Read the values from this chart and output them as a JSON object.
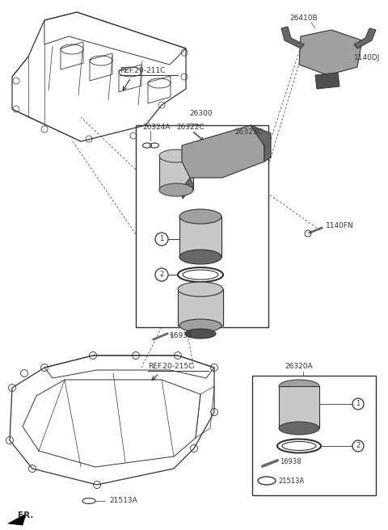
{
  "bg_color": "#ffffff",
  "line_color": "#333333",
  "labels": {
    "ref_20_211c": "REF.20-211C",
    "ref_20_215c": "REF.20-215C",
    "part_26300": "26300",
    "part_26324a": "26324A",
    "part_26322c": "26322C",
    "part_26323c": "26323C",
    "part_26410b": "26410B",
    "part_1140dj": "1140DJ",
    "part_1140fn": "1140FN",
    "part_16938": "16938",
    "part_21513a": "21513A",
    "part_26320a": "26320A",
    "fr_label": "FR.",
    "legend_16938": "16938",
    "legend_21513a": "21513A"
  },
  "gray_light": "#c8c8c8",
  "gray_mid": "#a0a0a0",
  "gray_dark": "#686868",
  "gray_darker": "#505050"
}
